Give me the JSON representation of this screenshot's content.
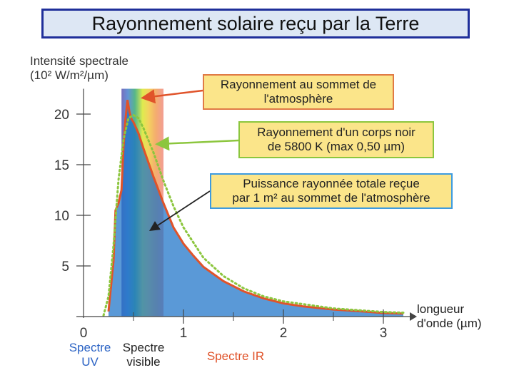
{
  "title": "Rayonnement solaire reçu par la Terre",
  "y_axis_label": {
    "line1": "Intensité spectrale",
    "line2": "(10² W/m²/µm)"
  },
  "x_axis_label": {
    "line1": "longueur",
    "line2": "d'onde (µm)"
  },
  "annotations": {
    "toa": {
      "line1": "Rayonnement au sommet de",
      "line2": "l'atmosphère",
      "border_color": "#e07a45"
    },
    "blackbody": {
      "line1": "Rayonnement d'un corps noir",
      "line2": "de 5800 K (max 0,50 µm)",
      "border_color": "#8cc63e"
    },
    "total": {
      "line1": "Puissance rayonnée totale reçue",
      "line2": "par 1 m² au sommet de l'atmosphère",
      "border_color": "#3d9be0"
    }
  },
  "regions": {
    "uv": {
      "line1": "Spectre",
      "line2": "UV",
      "color": "#2a62c4"
    },
    "visible": {
      "line1": "Spectre",
      "line2": "visible",
      "color": "#222222"
    },
    "ir": {
      "line1": "Spectre IR",
      "color": "#e0532a"
    }
  },
  "chart_data": {
    "type": "area",
    "title": "Rayonnement solaire reçu par la Terre",
    "xlabel": "longueur d'onde (µm)",
    "ylabel": "Intensité spectrale (10² W/m²/µm)",
    "xlim": [
      0,
      3.2
    ],
    "ylim": [
      0,
      22
    ],
    "x_ticks": [
      0,
      1,
      2,
      3
    ],
    "y_ticks": [
      5,
      10,
      15,
      20
    ],
    "visible_band": [
      0.38,
      0.8
    ],
    "series": [
      {
        "name": "Rayonnement au sommet de l'atmosphère",
        "color": "#e0532a",
        "fill": "#1a72c8",
        "x": [
          0.25,
          0.3,
          0.32,
          0.35,
          0.38,
          0.4,
          0.42,
          0.44,
          0.46,
          0.48,
          0.5,
          0.55,
          0.6,
          0.7,
          0.8,
          0.9,
          1.0,
          1.1,
          1.2,
          1.4,
          1.6,
          1.8,
          2.0,
          2.2,
          2.5,
          2.8,
          3.0,
          3.2
        ],
        "y": [
          0.5,
          5.5,
          10.5,
          11.2,
          12.5,
          16.8,
          19.5,
          21.4,
          20.2,
          19.5,
          19.2,
          18.1,
          16.6,
          13.8,
          11.2,
          8.8,
          7.2,
          6.0,
          4.9,
          3.5,
          2.5,
          1.8,
          1.3,
          1.0,
          0.7,
          0.5,
          0.35,
          0.3
        ]
      },
      {
        "name": "Rayonnement d'un corps noir de 5800 K",
        "color": "#8cc63e",
        "style": "dotted",
        "x": [
          0.2,
          0.25,
          0.3,
          0.35,
          0.4,
          0.45,
          0.5,
          0.55,
          0.6,
          0.7,
          0.8,
          0.9,
          1.0,
          1.2,
          1.4,
          1.6,
          1.8,
          2.0,
          2.5,
          3.0,
          3.2
        ],
        "y": [
          0.1,
          2.0,
          7.0,
          13.5,
          17.5,
          19.6,
          19.9,
          19.6,
          18.6,
          16.2,
          13.4,
          10.9,
          8.8,
          5.8,
          4.0,
          2.8,
          2.0,
          1.5,
          0.8,
          0.45,
          0.38
        ]
      }
    ]
  }
}
